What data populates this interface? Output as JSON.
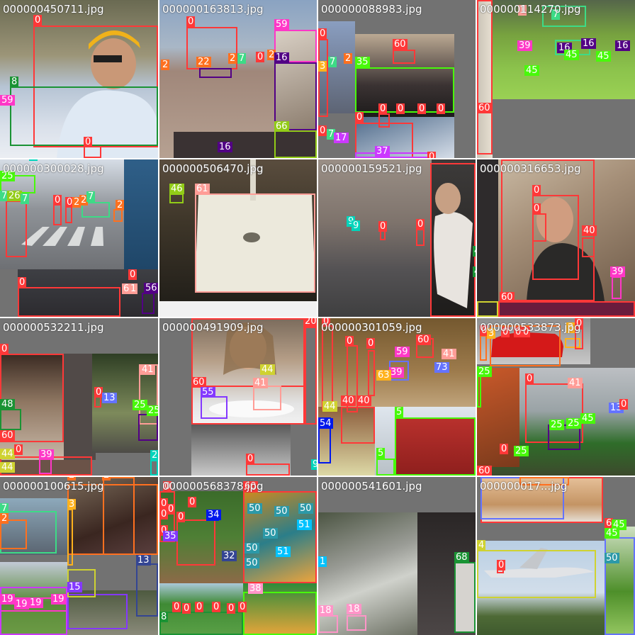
{
  "class_colors": {
    "0": "#ff3838",
    "2": "#ff701f",
    "3": "#ffb21d",
    "4": "#cfd231",
    "5": "#48f90a",
    "7": "#3ddb86",
    "8": "#1a9334",
    "9": "#00d4bb",
    "13": "#344593",
    "15": "#6473ff",
    "16": "#520085",
    "17": "#cb38ff",
    "18": "#ff95c8",
    "19": "#ff37c7",
    "20": "#ff3838",
    "22": "#ff701f",
    "25": "#48f90a",
    "26": "#92cc17",
    "27": "#3ddb86",
    "29": "#00d4bb",
    "32": "#00c2ff",
    "34": "#0018ec",
    "35": "#8438ff",
    "37": "#cb38ff",
    "38": "#ff95c8",
    "39": "#ff37c7",
    "40": "#ff3838",
    "41": "#ff9d97",
    "42": "#ff701f",
    "44": "#cfd231",
    "45": "#48f90a",
    "46": "#92cc17",
    "48": "#1a9334",
    "50": "#2c99a8",
    "51": "#00c2ff",
    "54": "#0018ec",
    "55": "#8438ff",
    "56": "#520085",
    "59": "#ff37c7",
    "60": "#ff3838",
    "61": "#ff9d97",
    "63": "#ffb21d",
    "66": "#92cc17",
    "68": "#1a9334",
    "72": "#344593",
    "73": "#6473ff"
  },
  "tiles": [
    {
      "name": "000000450711.jpg",
      "detections": [
        "0",
        "0",
        "8",
        "59"
      ]
    },
    {
      "name": "000000163813.jpg",
      "detections": [
        "0",
        "2",
        "22",
        "2",
        "7",
        "0",
        "2",
        "59",
        "16",
        "66",
        "16"
      ]
    },
    {
      "name": "000000088983.jpg",
      "detections": [
        "0",
        "60",
        "3",
        "7",
        "2",
        "35",
        "0",
        "0",
        "0",
        "0",
        "0",
        "0",
        "7",
        "17",
        "37",
        "0"
      ]
    },
    {
      "name": "000000114270.jpg",
      "detections": [
        "1",
        "7",
        "39",
        "16",
        "16",
        "45",
        "16",
        "45",
        "60"
      ]
    },
    {
      "name": "000000300028.jpg",
      "detections": [
        "9",
        "25",
        "7",
        "26",
        "7",
        "0",
        "0",
        "2",
        "2",
        "7",
        "2",
        "0",
        "6",
        "1",
        "56"
      ]
    },
    {
      "name": "000000506470.jpg",
      "detections": [
        "46",
        "61"
      ]
    },
    {
      "name": "000000159521.jpg",
      "detections": [
        "9",
        "9",
        "0",
        "0",
        "72",
        "48",
        "48",
        "0"
      ]
    },
    {
      "name": "000000316653.jpg",
      "detections": [
        "0",
        "0",
        "40",
        "39",
        "60"
      ]
    },
    {
      "name": "000000532211.jpg",
      "detections": [
        "0",
        "41",
        "0",
        "13",
        "25",
        "25",
        "48",
        "60",
        "44",
        "0",
        "39",
        "29"
      ]
    },
    {
      "name": "000000491909.jpg",
      "detections": [
        "0",
        "60",
        "44",
        "41",
        "55",
        "0",
        "20",
        "9"
      ]
    },
    {
      "name": "000000301059.jpg",
      "detections": [
        "0",
        "0",
        "0",
        "60",
        "59",
        "39",
        "63",
        "41",
        "73",
        "44",
        "40",
        "40",
        "54",
        "5",
        "5"
      ]
    },
    {
      "name": "000000533873.jpg",
      "detections": [
        "0",
        "3",
        "0",
        "0",
        "0",
        "0",
        "25",
        "0",
        "41",
        "0",
        "25",
        "25",
        "45",
        "13",
        "60"
      ]
    },
    {
      "name": "000000100615.jpg",
      "detections": [
        "2",
        "2",
        "3",
        "7",
        "13",
        "15",
        "19"
      ]
    },
    {
      "name": "000000568378.jpg",
      "detections": [
        "0",
        "60",
        "34",
        "35",
        "32",
        "50",
        "50",
        "50",
        "51",
        "50",
        "51",
        "50",
        "38",
        "8",
        "0",
        "0",
        "0",
        "0",
        "0"
      ]
    },
    {
      "name": "000000541601.jpg",
      "detections": [
        "68",
        "1",
        "18",
        "18"
      ]
    },
    {
      "name": "000000017...jpg",
      "detections": [
        "42",
        "4",
        "0",
        "6",
        "45",
        "50"
      ]
    }
  ]
}
